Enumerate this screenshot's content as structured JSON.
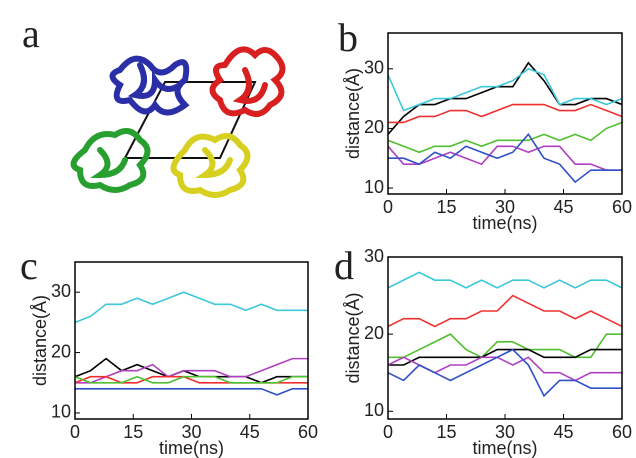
{
  "image_panel": {
    "label": "a"
  },
  "chart_data": [
    {
      "type": "line",
      "panel": "b",
      "xlabel": "time(ns)",
      "ylabel": "distance(Å)",
      "x": [
        0,
        4,
        8,
        12,
        16,
        20,
        24,
        28,
        32,
        36,
        40,
        44,
        48,
        52,
        56,
        60
      ],
      "xlim": [
        0,
        60
      ],
      "xticks": [
        0,
        15,
        30,
        45,
        60
      ],
      "ylim": [
        9,
        36
      ],
      "yticks": [
        10,
        20,
        30
      ],
      "series": [
        {
          "color": "#000000",
          "values": [
            19,
            22,
            24,
            24,
            25,
            25,
            26,
            27,
            27,
            31,
            28,
            24,
            24,
            25,
            25,
            24
          ]
        },
        {
          "color": "#3cc8d8",
          "values": [
            29,
            23,
            24,
            25,
            25,
            26,
            27,
            27,
            28,
            30,
            29,
            24,
            25,
            25,
            24,
            25
          ]
        },
        {
          "color": "#f03030",
          "values": [
            21,
            21,
            22,
            22,
            23,
            23,
            22,
            23,
            24,
            24,
            24,
            23,
            23,
            24,
            23,
            22
          ]
        },
        {
          "color": "#50c030",
          "values": [
            18,
            17,
            16,
            17,
            17,
            18,
            17,
            18,
            18,
            18,
            19,
            18,
            19,
            18,
            20,
            21
          ]
        },
        {
          "color": "#b040c0",
          "values": [
            17,
            14,
            14,
            15,
            16,
            15,
            14,
            17,
            17,
            16,
            17,
            17,
            14,
            14,
            13,
            13
          ]
        },
        {
          "color": "#3050c8",
          "values": [
            15,
            15,
            14,
            16,
            15,
            17,
            16,
            15,
            16,
            19,
            15,
            14,
            11,
            13,
            13,
            13
          ]
        }
      ]
    },
    {
      "type": "line",
      "panel": "c",
      "xlabel": "time(ns)",
      "ylabel": "distance(Å)",
      "x": [
        0,
        4,
        8,
        12,
        16,
        20,
        24,
        28,
        32,
        36,
        40,
        44,
        48,
        52,
        56,
        60
      ],
      "xlim": [
        0,
        60
      ],
      "xticks": [
        0,
        15,
        30,
        45,
        60
      ],
      "ylim": [
        9,
        35
      ],
      "yticks": [
        10,
        20,
        30
      ],
      "series": [
        {
          "color": "#3cc8d8",
          "values": [
            25,
            26,
            28,
            28,
            29,
            28,
            29,
            30,
            29,
            28,
            28,
            27,
            28,
            27,
            27,
            27
          ]
        },
        {
          "color": "#000000",
          "values": [
            16,
            17,
            19,
            17,
            18,
            17,
            16,
            17,
            16,
            16,
            16,
            16,
            15,
            16,
            16,
            16
          ]
        },
        {
          "color": "#b040c0",
          "values": [
            15,
            15,
            16,
            17,
            17,
            18,
            16,
            17,
            17,
            17,
            16,
            16,
            17,
            18,
            19,
            19
          ]
        },
        {
          "color": "#f03030",
          "values": [
            15,
            16,
            16,
            15,
            15,
            16,
            16,
            16,
            15,
            15,
            15,
            15,
            15,
            15,
            15,
            15
          ]
        },
        {
          "color": "#50c030",
          "values": [
            16,
            15,
            15,
            15,
            16,
            15,
            15,
            16,
            16,
            16,
            15,
            15,
            15,
            15,
            16,
            16
          ]
        },
        {
          "color": "#3050c8",
          "values": [
            14,
            14,
            14,
            14,
            14,
            14,
            14,
            14,
            14,
            14,
            14,
            14,
            14,
            13,
            14,
            14
          ]
        }
      ]
    },
    {
      "type": "line",
      "panel": "d",
      "xlabel": "time(ns)",
      "ylabel": "distance(Å)",
      "x": [
        0,
        4,
        8,
        12,
        16,
        20,
        24,
        28,
        32,
        36,
        40,
        44,
        48,
        52,
        56,
        60
      ],
      "xlim": [
        0,
        60
      ],
      "xticks": [
        0,
        15,
        30,
        45,
        60
      ],
      "ylim": [
        9,
        30
      ],
      "yticks": [
        10,
        20,
        30
      ],
      "series": [
        {
          "color": "#3cc8d8",
          "values": [
            26,
            27,
            28,
            27,
            27,
            26,
            27,
            26,
            27,
            27,
            26,
            27,
            26,
            27,
            27,
            26
          ]
        },
        {
          "color": "#f03030",
          "values": [
            21,
            22,
            22,
            21,
            22,
            22,
            23,
            23,
            25,
            24,
            23,
            23,
            22,
            23,
            22,
            21
          ]
        },
        {
          "color": "#50c030",
          "values": [
            17,
            17,
            18,
            19,
            20,
            18,
            17,
            19,
            19,
            18,
            18,
            18,
            17,
            17,
            20,
            20
          ]
        },
        {
          "color": "#000000",
          "values": [
            16,
            16,
            17,
            17,
            17,
            17,
            17,
            18,
            18,
            18,
            17,
            17,
            17,
            18,
            18,
            18
          ]
        },
        {
          "color": "#b040c0",
          "values": [
            16,
            17,
            16,
            15,
            16,
            16,
            17,
            17,
            16,
            17,
            15,
            15,
            14,
            15,
            15,
            15
          ]
        },
        {
          "color": "#3050c8",
          "values": [
            15,
            14,
            16,
            15,
            14,
            15,
            16,
            17,
            18,
            16,
            12,
            14,
            14,
            13,
            13,
            13
          ]
        }
      ]
    }
  ]
}
